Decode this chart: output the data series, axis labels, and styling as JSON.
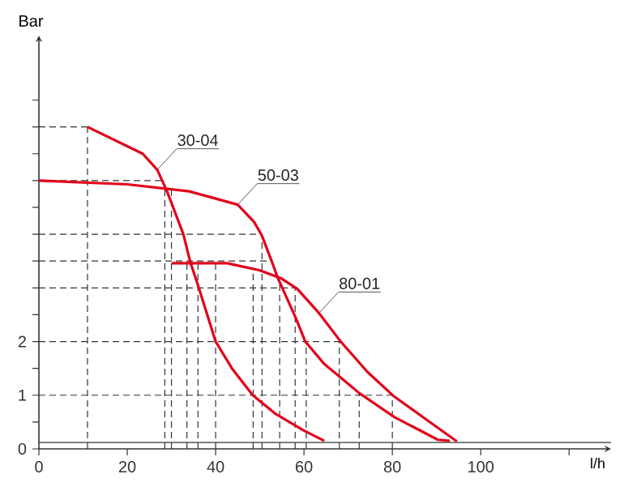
{
  "chart_data": {
    "type": "line",
    "xlabel": "l/h",
    "ylabel": "Bar",
    "xlim": [
      0,
      129.5
    ],
    "ylim": [
      0,
      7.7
    ],
    "xticks": [
      0,
      20,
      40,
      60,
      80,
      100,
      {
        "value": 120,
        "label": null
      }
    ],
    "yticks": [
      0,
      {
        "value": 0.5,
        "label": null
      },
      1,
      {
        "value": 1.5,
        "label": null
      },
      2,
      {
        "value": 2.5,
        "label": null
      },
      {
        "value": 3,
        "label": null
      },
      {
        "value": 3.5,
        "label": null
      },
      {
        "value": 4,
        "label": null
      },
      {
        "value": 4.5,
        "label": null
      },
      {
        "value": 5,
        "label": null
      },
      {
        "value": 5.5,
        "label": null
      },
      {
        "value": 6,
        "label": null
      },
      {
        "value": 6.5,
        "label": null
      }
    ],
    "grid": false,
    "legend": false,
    "line_style": "solid",
    "series": [
      {
        "name": "30-04",
        "color": "#e2001a",
        "x": [
          11,
          23.5,
          26.8,
          29,
          32.7,
          34.2,
          36.2,
          40,
          43.7,
          48.4,
          53.6,
          59.8,
          64.6
        ],
        "values": [
          6.0,
          5.5,
          5.2,
          4.8,
          4.0,
          3.5,
          3.0,
          2.0,
          1.5,
          1.0,
          0.65,
          0.35,
          0.15
        ]
      },
      {
        "name": "50-03",
        "color": "#e2001a",
        "x": [
          0,
          20,
          34,
          45,
          48.7,
          50.5,
          53,
          54,
          58.2,
          60.3,
          64.6,
          68.3,
          72.5,
          80.5,
          90.3,
          93
        ],
        "values": [
          5.0,
          4.93,
          4.8,
          4.55,
          4.23,
          3.97,
          3.43,
          3.2,
          2.43,
          2.0,
          1.58,
          1.33,
          1.04,
          0.59,
          0.17,
          0.15
        ]
      },
      {
        "name": "80-01",
        "color": "#e2001a",
        "x": [
          30.1,
          42.6,
          49.9,
          54.8,
          58.5,
          63.4,
          68.3,
          74.4,
          80.2,
          87.8,
          94.6
        ],
        "values": [
          3.46,
          3.46,
          3.33,
          3.18,
          2.98,
          2.53,
          2.0,
          1.43,
          0.99,
          0.54,
          0.14
        ]
      }
    ],
    "ref_lines": [
      {
        "axis": "y",
        "value": 0.12,
        "color": "#333333",
        "line_style": "solid"
      },
      {
        "axis": "y",
        "value": 1,
        "color": "#333333",
        "line_style": "dashed"
      },
      {
        "axis": "y",
        "value": 2,
        "color": "#333333",
        "line_style": "dashed"
      },
      {
        "axis": "y",
        "value": 3,
        "color": "#333333",
        "line_style": "dashed"
      },
      {
        "axis": "y",
        "value": 3.5,
        "color": "#333333",
        "line_style": "dashed"
      },
      {
        "axis": "y",
        "value": 4,
        "color": "#333333",
        "line_style": "dashed"
      },
      {
        "axis": "y",
        "value": 5,
        "color": "#333333",
        "line_style": "dashed"
      },
      {
        "axis": "y",
        "value": 6,
        "color": "#333333",
        "line_style": "dashed"
      },
      {
        "axis": "x",
        "value": 11,
        "color": "#333333",
        "line_style": "dashed"
      },
      {
        "axis": "x",
        "value": 28.5,
        "color": "#333333",
        "line_style": "dashed"
      },
      {
        "axis": "x",
        "value": 30,
        "color": "#333333",
        "line_style": "dashed"
      },
      {
        "axis": "x",
        "value": 33.5,
        "color": "#333333",
        "line_style": "dashed"
      },
      {
        "axis": "x",
        "value": 36,
        "color": "#333333",
        "line_style": "dashed"
      },
      {
        "axis": "x",
        "value": 40,
        "color": "#333333",
        "line_style": "dashed"
      },
      {
        "axis": "x",
        "value": 48.5,
        "color": "#333333",
        "line_style": "dashed"
      },
      {
        "axis": "x",
        "value": 50.5,
        "color": "#333333",
        "line_style": "dashed"
      },
      {
        "axis": "x",
        "value": 54.5,
        "color": "#333333",
        "line_style": "dashed"
      },
      {
        "axis": "x",
        "value": 58,
        "color": "#333333",
        "line_style": "dashed"
      },
      {
        "axis": "x",
        "value": 60.5,
        "color": "#333333",
        "line_style": "dashed"
      },
      {
        "axis": "x",
        "value": 68,
        "color": "#333333",
        "line_style": "dashed"
      },
      {
        "axis": "x",
        "value": 72.5,
        "color": "#333333",
        "line_style": "dashed"
      },
      {
        "axis": "x",
        "value": 80,
        "color": "#333333",
        "line_style": "dashed"
      }
    ]
  }
}
